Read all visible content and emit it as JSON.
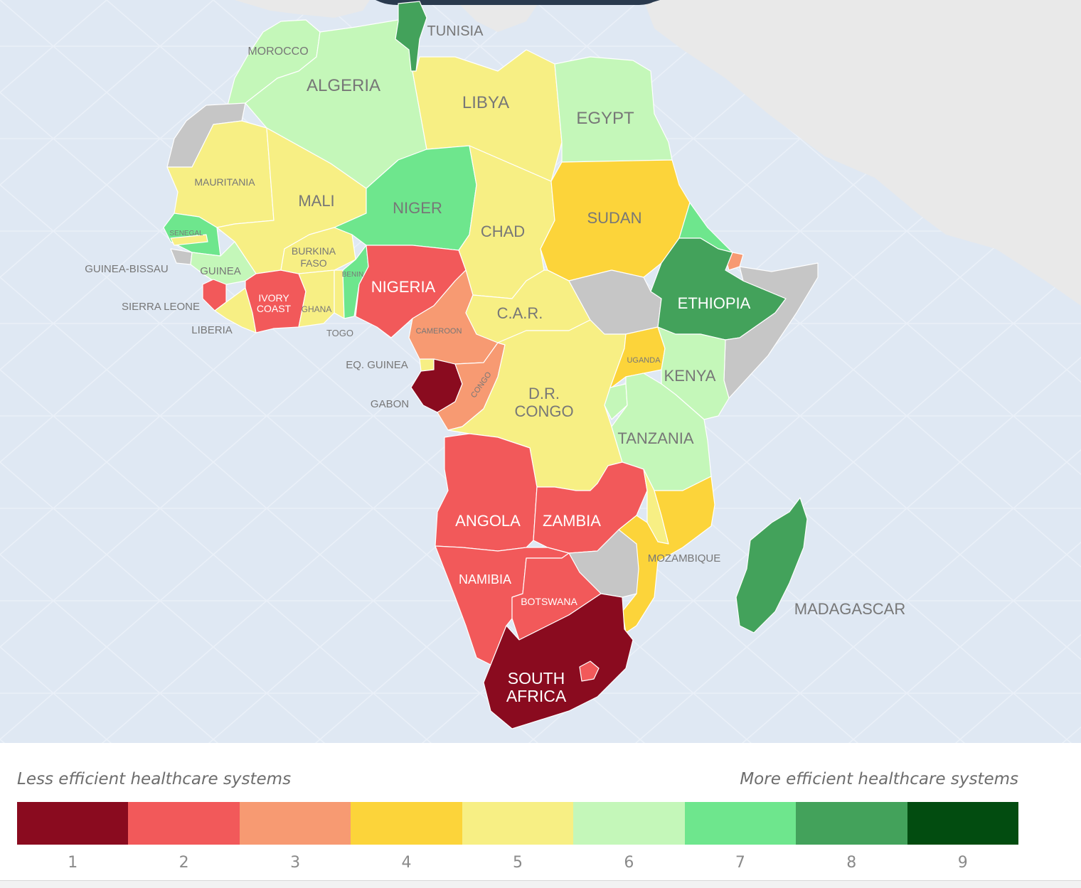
{
  "colors": {
    "ocean": "#dfe8f3",
    "ocean_lines": "#eaf0f8",
    "land_other": "#e9e9e9",
    "no_data": "#c6c6c6",
    "top_bar": "#2a3a4e"
  },
  "scale": [
    {
      "value": 1,
      "label": "1",
      "color": "#8a0b1f"
    },
    {
      "value": 2,
      "label": "2",
      "color": "#f2595a"
    },
    {
      "value": 3,
      "label": "3",
      "color": "#f79a72"
    },
    {
      "value": 4,
      "label": "4",
      "color": "#fcd43a"
    },
    {
      "value": 5,
      "label": "5",
      "color": "#f7ef84"
    },
    {
      "value": 6,
      "label": "6",
      "color": "#c4f7b9"
    },
    {
      "value": 7,
      "label": "7",
      "color": "#6ee68d"
    },
    {
      "value": 8,
      "label": "8",
      "color": "#43a25b"
    },
    {
      "value": 9,
      "label": "9",
      "color": "#024c10"
    }
  ],
  "legend": {
    "low_label": "Less efficient healthcare systems",
    "high_label": "More efficient healthcare systems"
  },
  "countries": [
    {
      "id": "morocco",
      "label": "MOROCCO",
      "value": 6
    },
    {
      "id": "western-sahara",
      "label": "",
      "value": null
    },
    {
      "id": "algeria",
      "label": "ALGERIA",
      "value": 6
    },
    {
      "id": "tunisia",
      "label": "TUNISIA",
      "value": 8
    },
    {
      "id": "libya",
      "label": "LIBYA",
      "value": 5
    },
    {
      "id": "egypt",
      "label": "EGYPT",
      "value": 6
    },
    {
      "id": "mauritania",
      "label": "MAURITANIA",
      "value": 5
    },
    {
      "id": "mali",
      "label": "MALI",
      "value": 5
    },
    {
      "id": "niger",
      "label": "NIGER",
      "value": 7
    },
    {
      "id": "chad",
      "label": "CHAD",
      "value": 5
    },
    {
      "id": "sudan",
      "label": "SUDAN",
      "value": 4
    },
    {
      "id": "eritrea",
      "label": "",
      "value": 7
    },
    {
      "id": "djibouti",
      "label": "",
      "value": 3
    },
    {
      "id": "senegal",
      "label": "SENEGAL",
      "value": 7
    },
    {
      "id": "gambia",
      "label": "",
      "value": 5
    },
    {
      "id": "guinea-bissau",
      "label": "GUINEA-BISSAU",
      "value": null
    },
    {
      "id": "guinea",
      "label": "GUINEA",
      "value": 6
    },
    {
      "id": "sierra-leone",
      "label": "SIERRA LEONE",
      "value": 2
    },
    {
      "id": "liberia",
      "label": "LIBERIA",
      "value": 5
    },
    {
      "id": "ivory-coast",
      "label": "IVORY COAST",
      "value": 2
    },
    {
      "id": "burkina-faso",
      "label": "BURKINA FASO",
      "value": 5
    },
    {
      "id": "ghana",
      "label": "GHANA",
      "value": 5
    },
    {
      "id": "togo",
      "label": "TOGO",
      "value": 5
    },
    {
      "id": "benin",
      "label": "BENIN",
      "value": 7
    },
    {
      "id": "nigeria",
      "label": "NIGERIA",
      "value": 2
    },
    {
      "id": "cameroon",
      "label": "CAMEROON",
      "value": 3
    },
    {
      "id": "car",
      "label": "C.A.R.",
      "value": 5
    },
    {
      "id": "south-sudan",
      "label": "",
      "value": null
    },
    {
      "id": "ethiopia",
      "label": "ETHIOPIA",
      "value": 8
    },
    {
      "id": "somalia",
      "label": "",
      "value": null
    },
    {
      "id": "eq-guinea",
      "label": "EQ. GUINEA",
      "value": 5
    },
    {
      "id": "gabon",
      "label": "GABON",
      "value": 1
    },
    {
      "id": "congo",
      "label": "CONGO",
      "value": 3
    },
    {
      "id": "dr-congo",
      "label": "D.R. CONGO",
      "value": 5
    },
    {
      "id": "uganda",
      "label": "UGANDA",
      "value": 4
    },
    {
      "id": "kenya",
      "label": "KENYA",
      "value": 6
    },
    {
      "id": "rwanda",
      "label": "",
      "value": 6
    },
    {
      "id": "tanzania",
      "label": "TANZANIA",
      "value": 6
    },
    {
      "id": "angola",
      "label": "ANGOLA",
      "value": 2
    },
    {
      "id": "zambia",
      "label": "ZAMBIA",
      "value": 2
    },
    {
      "id": "malawi",
      "label": "",
      "value": 5
    },
    {
      "id": "mozambique",
      "label": "MOZAMBIQUE",
      "value": 4
    },
    {
      "id": "zimbabwe",
      "label": "",
      "value": null
    },
    {
      "id": "namibia",
      "label": "NAMIBIA",
      "value": 2
    },
    {
      "id": "botswana",
      "label": "BOTSWANA",
      "value": 2
    },
    {
      "id": "south-africa",
      "label": "SOUTH AFRICA",
      "value": 1
    },
    {
      "id": "lesotho",
      "label": "",
      "value": 2
    },
    {
      "id": "madagascar",
      "label": "MADAGASCAR",
      "value": 8
    }
  ]
}
